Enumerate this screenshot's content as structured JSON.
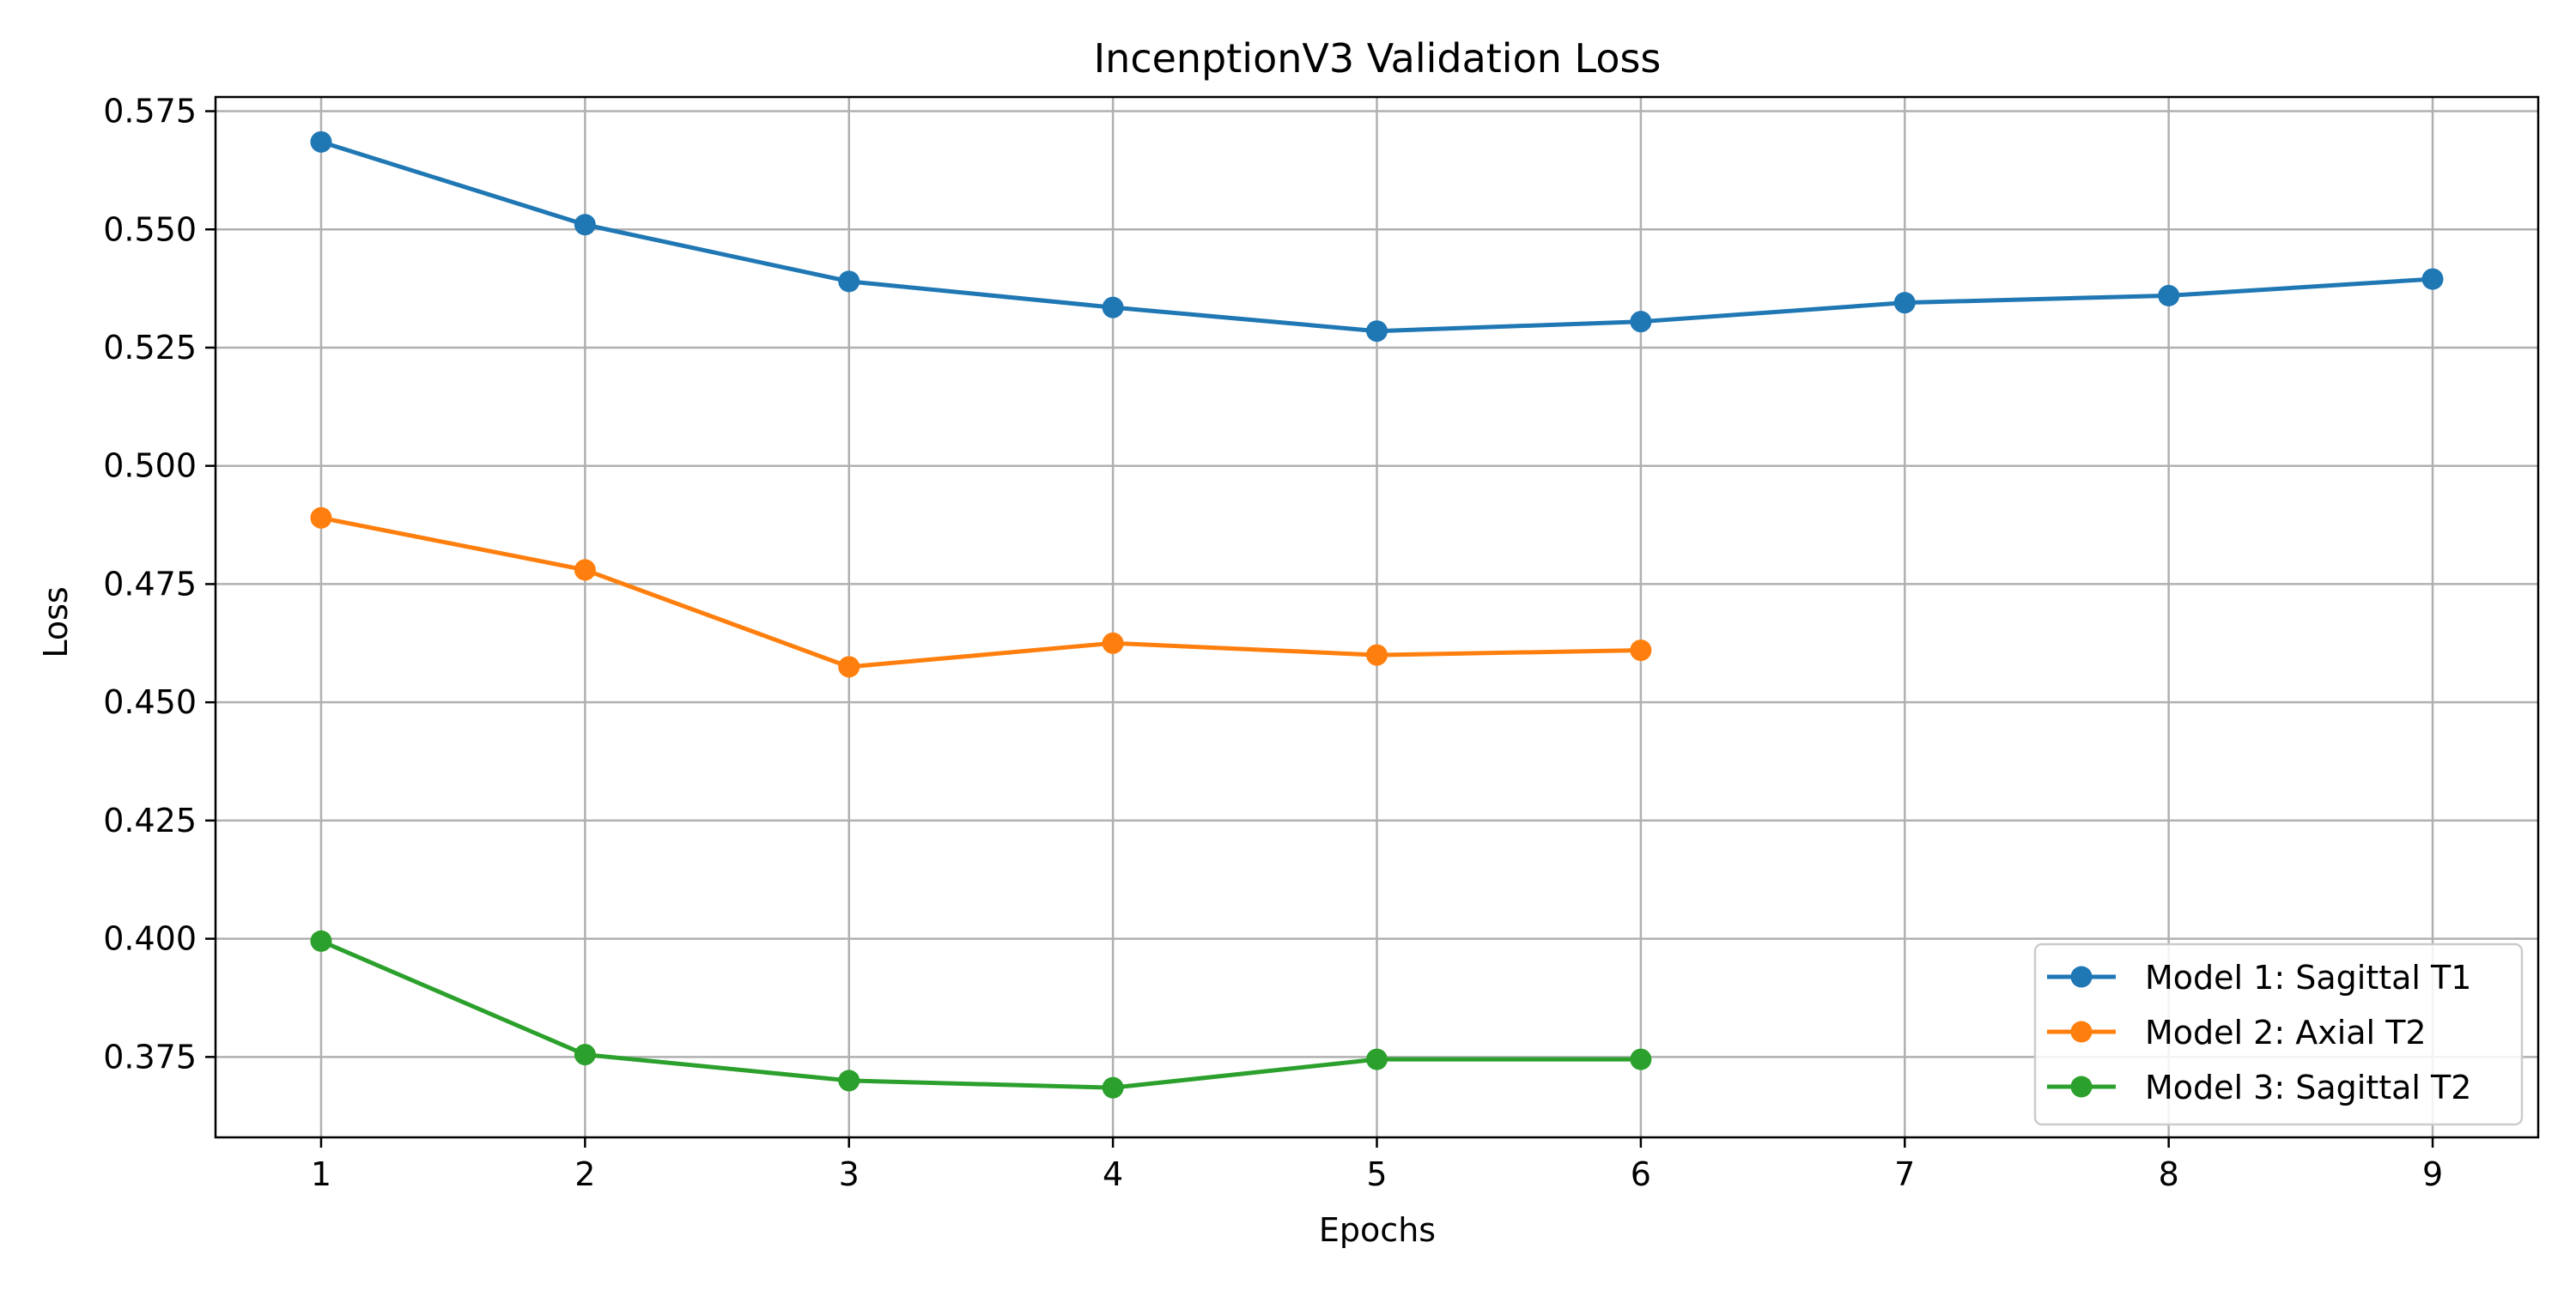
{
  "chart_data": {
    "type": "line",
    "title": "IncenptionV3 Validation Loss",
    "xlabel": "Epochs",
    "ylabel": "Loss",
    "xlim": [
      0.6,
      9.4
    ],
    "ylim": [
      0.358,
      0.578
    ],
    "x_ticks": [
      1,
      2,
      3,
      4,
      5,
      6,
      7,
      8,
      9
    ],
    "y_ticks": [
      0.375,
      0.4,
      0.425,
      0.45,
      0.475,
      0.5,
      0.525,
      0.55,
      0.575
    ],
    "y_tick_labels": [
      "0.375",
      "0.400",
      "0.425",
      "0.450",
      "0.475",
      "0.500",
      "0.525",
      "0.550",
      "0.575"
    ],
    "grid": true,
    "legend_position": "lower-right",
    "series": [
      {
        "name": "Model 1: Sagittal T1",
        "color": "#1f77b4",
        "x": [
          1,
          2,
          3,
          4,
          5,
          6,
          7,
          8,
          9
        ],
        "values": [
          0.5685,
          0.551,
          0.539,
          0.5335,
          0.5285,
          0.5305,
          0.5345,
          0.536,
          0.5395
        ]
      },
      {
        "name": "Model 2: Axial T2",
        "color": "#ff7f0e",
        "x": [
          1,
          2,
          3,
          4,
          5,
          6
        ],
        "values": [
          0.489,
          0.478,
          0.4575,
          0.4625,
          0.46,
          0.461
        ]
      },
      {
        "name": "Model 3: Sagittal T2",
        "color": "#2ca02c",
        "x": [
          1,
          2,
          3,
          4,
          5,
          6
        ],
        "values": [
          0.3995,
          0.3755,
          0.37,
          0.3685,
          0.3745,
          0.3745
        ]
      }
    ]
  }
}
